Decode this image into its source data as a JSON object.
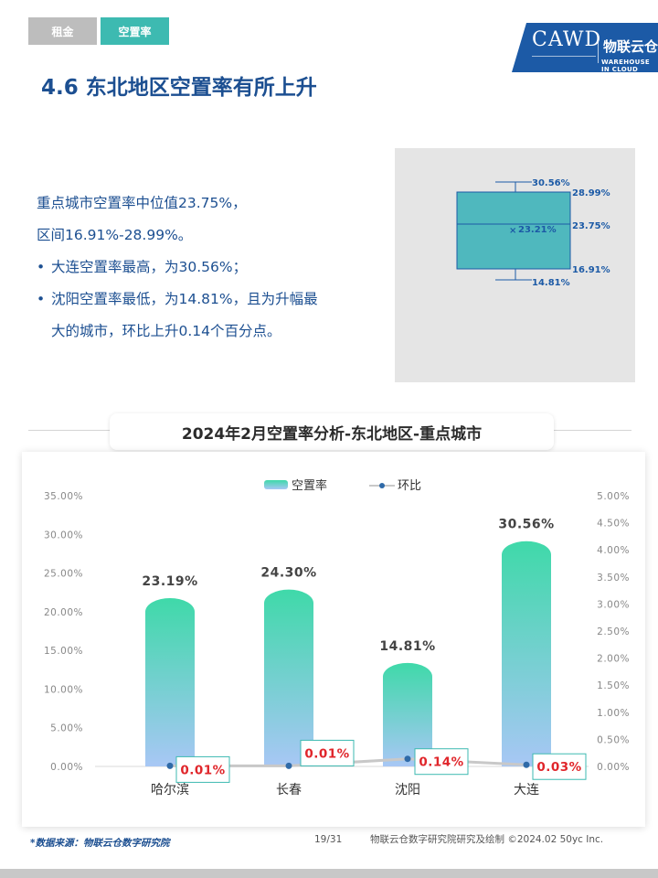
{
  "tabs": [
    {
      "label": "租金"
    },
    {
      "label": "空置率"
    }
  ],
  "logo": {
    "cawd": "CAWD",
    "brand_cn": "物联云仓",
    "brand_en": "WAREHOUSE IN CLOUD"
  },
  "page_title": "4.6 东北地区空置率有所上升",
  "summary": {
    "line1": "重点城市空置率中位值23.75%，",
    "line2": "区间16.91%-28.99%。",
    "bullet1": "大连空置率最高，为30.56%；",
    "bullet2a": "沈阳空置率最低，为14.81%，且为升幅最",
    "bullet2b": "大的城市，环比上升0.14个百分点。"
  },
  "boxplot": {
    "max_label": "30.56%",
    "q3_label": "28.99%",
    "median_label": "23.75%",
    "mean_label": "23.21%",
    "q1_label": "16.91%",
    "min_label": "14.81%",
    "mean_marker": "×",
    "colors": {
      "box": "#4fb8be",
      "line": "#1c5aa6"
    }
  },
  "section_title": "2024年2月空置率分析-东北地区-重点城市",
  "chart_data": {
    "type": "bar",
    "categories": [
      "哈尔滨",
      "长春",
      "沈阳",
      "大连"
    ],
    "series": [
      {
        "name": "空置率",
        "type": "bar",
        "axis": "left",
        "values": [
          23.19,
          24.3,
          14.81,
          30.56
        ],
        "labels": [
          "23.19%",
          "24.30%",
          "14.81%",
          "30.56%"
        ]
      },
      {
        "name": "环比",
        "type": "line",
        "axis": "right",
        "values": [
          0.01,
          0.01,
          0.14,
          0.03
        ],
        "labels": [
          "0.01%",
          "0.01%",
          "0.14%",
          "0.03%"
        ]
      }
    ],
    "y_left": {
      "ticks": [
        "0.00%",
        "5.00%",
        "10.00%",
        "15.00%",
        "20.00%",
        "25.00%",
        "30.00%",
        "35.00%"
      ],
      "min": 0,
      "max": 35
    },
    "y_right": {
      "ticks": [
        "0.00%",
        "0.50%",
        "1.00%",
        "1.50%",
        "2.00%",
        "2.50%",
        "3.00%",
        "3.50%",
        "4.00%",
        "4.50%",
        "5.00%"
      ],
      "min": 0,
      "max": 5
    },
    "legend": {
      "placement": "top-center"
    },
    "grid": false,
    "colors": {
      "bar_top": "#3fd9a9",
      "bar_bottom": "#a8c7f5",
      "line": "#c8c8c8",
      "point": "#2f6aa8",
      "label_text": "#e0262b",
      "label_border": "#3dbab1"
    }
  },
  "footer": {
    "source": "*数据来源：物联云仓数字研究院",
    "page": "19/31",
    "credit": "物联云仓数字研究院研究及绘制   ©2024.02 50yc Inc."
  }
}
